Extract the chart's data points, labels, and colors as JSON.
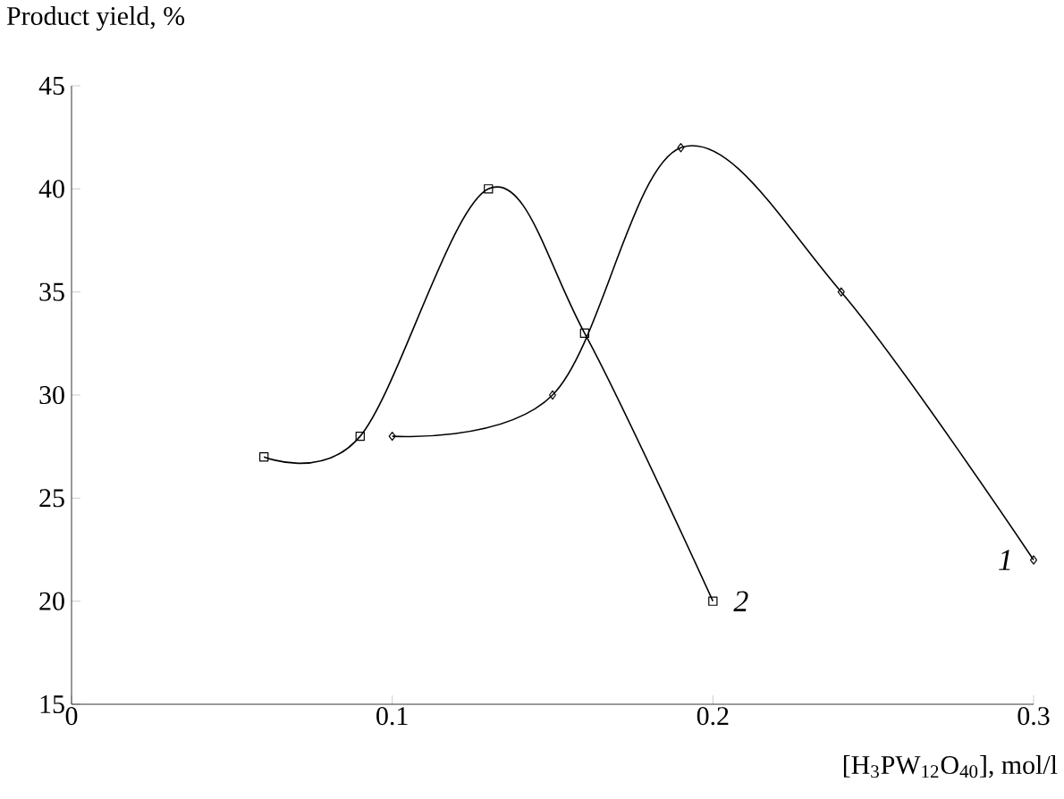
{
  "chart_data": {
    "type": "line",
    "xlabel": "[H$_{3}$PW$_{12}$O$_{40}$], mol/l",
    "ylabel": "Product yield, %",
    "xlim": [
      0,
      0.3
    ],
    "ylim": [
      15,
      45
    ],
    "xticks": [
      0,
      0.1,
      0.2,
      0.3
    ],
    "yticks": [
      15,
      20,
      25,
      30,
      35,
      40,
      45
    ],
    "grid": false,
    "legend": false,
    "series": [
      {
        "name": "1",
        "color": "#000000",
        "marker": "diamond",
        "x": [
          0.1,
          0.15,
          0.19,
          0.24,
          0.3
        ],
        "values": [
          28,
          30,
          42,
          35,
          22
        ]
      },
      {
        "name": "2",
        "color": "#000000",
        "marker": "square",
        "x": [
          0.06,
          0.09,
          0.13,
          0.16,
          0.2
        ],
        "values": [
          27,
          28,
          40,
          33,
          20
        ]
      }
    ]
  }
}
